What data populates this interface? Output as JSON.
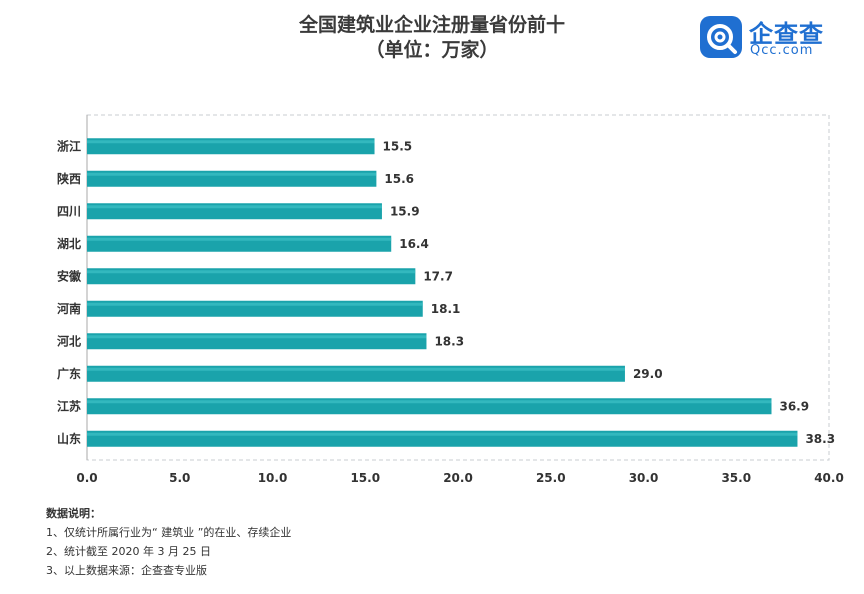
{
  "title": {
    "line1": "全国建筑业企业注册量省份前十",
    "line2": "（单位：万家）"
  },
  "logo": {
    "name": "企查查",
    "domain": "Qcc.com",
    "color": "#1f6fd1"
  },
  "notes": {
    "heading": "数据说明：",
    "items": [
      "1、仅统计所属行业为“ 建筑业 ”的在业、存续企业",
      "2、统计截至 2020 年 3 月 25 日",
      "3、以上数据来源：企查查专业版"
    ]
  },
  "chart_data": {
    "type": "bar",
    "orientation": "horizontal",
    "title": "全国建筑业企业注册量省份前十",
    "subtitle": "（单位：万家）",
    "categories": [
      "浙江",
      "陕西",
      "四川",
      "湖北",
      "安徽",
      "河南",
      "河北",
      "广东",
      "江苏",
      "山东"
    ],
    "values": [
      15.5,
      15.6,
      15.9,
      16.4,
      17.7,
      18.1,
      18.3,
      29.0,
      36.9,
      38.3
    ],
    "value_labels": [
      "15.5",
      "15.6",
      "15.9",
      "16.4",
      "17.7",
      "18.1",
      "18.3",
      "29.0",
      "36.9",
      "38.3"
    ],
    "xlim": [
      0,
      40
    ],
    "xticks": [
      "0.0",
      "5.0",
      "10.0",
      "15.0",
      "20.0",
      "25.0",
      "30.0",
      "35.0",
      "40.0"
    ],
    "xtick_values": [
      0,
      5,
      10,
      15,
      20,
      25,
      30,
      35,
      40
    ],
    "bar_color": "#1aa3ab",
    "grid": false,
    "border": "dashed"
  }
}
